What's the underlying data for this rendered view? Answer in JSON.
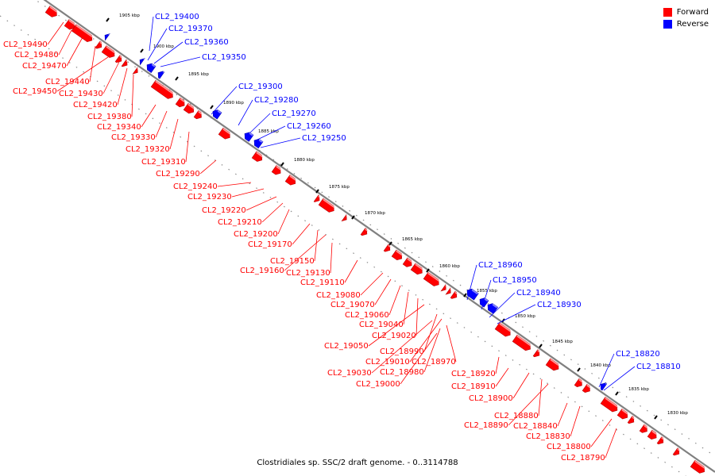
{
  "colors": {
    "forward": "#ff0000",
    "reverse": "#0000ff",
    "axis": "#808080",
    "tick": "#000000"
  },
  "legend": {
    "forward": "Forward",
    "reverse": "Reverse"
  },
  "caption": "Clostridiales sp. SSC/2 draft genome. - 0..3114788",
  "ticks": [
    "1905 kbp",
    "1900 kbp",
    "1895 kbp",
    "1890 kbp",
    "1885 kbp",
    "1880 kbp",
    "1875 kbp",
    "1870 kbp",
    "1865 kbp",
    "1860 kbp",
    "1855 kbp",
    "1850 kbp",
    "1845 kbp",
    "1840 kbp",
    "1835 kbp",
    "1830 kbp"
  ],
  "forward_labels": [
    "CL2_19490",
    "CL2_19480",
    "CL2_19470",
    "CL2_19440",
    "CL2_19450",
    "CL2_19430",
    "CL2_19420",
    "CL2_19380",
    "CL2_19340",
    "CL2_19330",
    "CL2_19320",
    "CL2_19310",
    "CL2_19290",
    "CL2_19240",
    "CL2_19230",
    "CL2_19220",
    "CL2_19210",
    "CL2_19200",
    "CL2_19170",
    "CL2_19150",
    "CL2_19160",
    "CL2_19130",
    "CL2_19110",
    "CL2_19080",
    "CL2_19070",
    "CL2_19060",
    "CL2_19040",
    "CL2_19020",
    "CL2_19050",
    "CL2_18990",
    "CL2_19010",
    "CL2_18970",
    "CL2_19030",
    "CL2_18980",
    "CL2_18920",
    "CL2_19000",
    "CL2_18910",
    "CL2_18900",
    "CL2_18880",
    "CL2_18840",
    "CL2_18890",
    "CL2_18830",
    "CL2_18800",
    "CL2_18790"
  ],
  "reverse_labels": [
    "CL2_19400",
    "CL2_19370",
    "CL2_19360",
    "CL2_19350",
    "CL2_19300",
    "CL2_19280",
    "CL2_19270",
    "CL2_19260",
    "CL2_19250",
    "CL2_18960",
    "CL2_18950",
    "CL2_18940",
    "CL2_18930",
    "CL2_18820",
    "CL2_18810"
  ]
}
